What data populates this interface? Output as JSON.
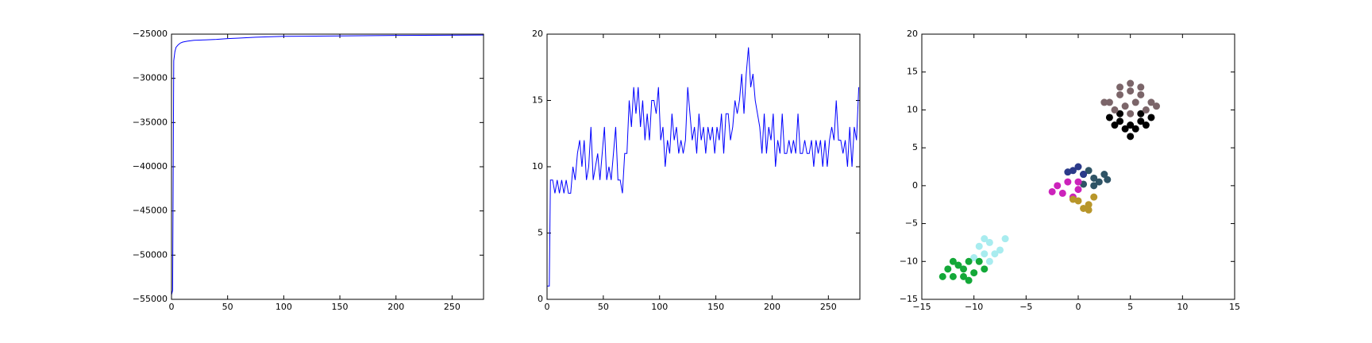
{
  "chart_data": [
    {
      "type": "line",
      "color": "#0000ff",
      "x": [
        0,
        1,
        2,
        3,
        4,
        6,
        8,
        10,
        14,
        20,
        30,
        40,
        50,
        60,
        75,
        100,
        150,
        200,
        278
      ],
      "values": [
        -54500,
        -54000,
        -28000,
        -27000,
        -26500,
        -26200,
        -26000,
        -25900,
        -25800,
        -25700,
        -25650,
        -25600,
        -25500,
        -25450,
        -25350,
        -25250,
        -25200,
        -25150,
        -25100
      ],
      "xlim": [
        0,
        278
      ],
      "xticks": [
        0,
        50,
        100,
        150,
        200,
        250
      ],
      "ylim": [
        -55000,
        -25000
      ],
      "yticks": [
        {
          "value": -55000,
          "label": "−55000"
        },
        {
          "value": -50000,
          "label": "−50000"
        },
        {
          "value": -45000,
          "label": "−45000"
        },
        {
          "value": -40000,
          "label": "−40000"
        },
        {
          "value": -35000,
          "label": "−35000"
        },
        {
          "value": -30000,
          "label": "−30000"
        },
        {
          "value": -25000,
          "label": "−25000"
        }
      ]
    },
    {
      "type": "line",
      "color": "#0000ff",
      "x": [
        0,
        2,
        3,
        5,
        7,
        9,
        11,
        13,
        15,
        17,
        19,
        21,
        23,
        25,
        27,
        29,
        31,
        33,
        35,
        37,
        39,
        41,
        43,
        45,
        47,
        49,
        51,
        53,
        55,
        57,
        59,
        61,
        63,
        65,
        67,
        69,
        71,
        73,
        75,
        77,
        79,
        81,
        83,
        85,
        87,
        89,
        91,
        93,
        95,
        97,
        99,
        101,
        103,
        105,
        107,
        109,
        111,
        113,
        115,
        117,
        119,
        121,
        123,
        125,
        127,
        129,
        131,
        133,
        135,
        137,
        139,
        141,
        143,
        145,
        147,
        149,
        151,
        153,
        155,
        157,
        159,
        161,
        163,
        165,
        167,
        169,
        171,
        173,
        175,
        177,
        179,
        181,
        183,
        185,
        187,
        189,
        191,
        193,
        195,
        197,
        199,
        201,
        203,
        205,
        207,
        209,
        211,
        213,
        215,
        217,
        219,
        221,
        223,
        225,
        227,
        229,
        231,
        233,
        235,
        237,
        239,
        241,
        243,
        245,
        247,
        249,
        251,
        253,
        255,
        257,
        259,
        261,
        263,
        265,
        267,
        269,
        271,
        273,
        275,
        277
      ],
      "values": [
        1,
        1,
        9,
        9,
        8,
        9,
        8,
        9,
        8,
        9,
        8,
        8,
        10,
        9,
        11,
        12,
        10,
        12,
        9,
        10,
        13,
        9,
        10,
        11,
        9,
        11,
        13,
        9,
        10,
        9,
        11,
        13,
        9,
        9,
        8,
        11,
        11,
        15,
        13,
        16,
        14,
        16,
        13,
        15,
        12,
        14,
        12,
        15,
        15,
        14,
        16,
        12,
        13,
        10,
        12,
        11,
        14,
        12,
        13,
        11,
        12,
        11,
        12,
        16,
        14,
        12,
        13,
        11,
        14,
        12,
        13,
        11,
        13,
        12,
        13,
        11,
        13,
        12,
        14,
        11,
        14,
        14,
        12,
        13,
        15,
        14,
        15,
        17,
        14,
        17,
        19,
        16,
        17,
        15,
        14,
        13,
        11,
        14,
        11,
        13,
        12,
        14,
        10,
        12,
        11,
        14,
        11,
        11,
        12,
        11,
        12,
        11,
        14,
        11,
        11,
        12,
        11,
        11,
        12,
        10,
        12,
        11,
        12,
        10,
        12,
        10,
        12,
        13,
        12,
        15,
        12,
        12,
        11,
        12,
        10,
        13,
        10,
        13,
        12,
        16
      ],
      "xlim": [
        0,
        278
      ],
      "xticks": [
        0,
        50,
        100,
        150,
        200,
        250
      ],
      "ylim": [
        0,
        20
      ],
      "yticks": [
        0,
        5,
        10,
        15,
        20
      ]
    },
    {
      "type": "scatter",
      "series": [
        {
          "color": "#000000",
          "x": [
            3,
            4,
            5,
            6,
            7,
            4.5,
            5.5,
            4,
            6,
            5,
            3.5,
            6.5
          ],
          "y": [
            9,
            8.5,
            8,
            8.5,
            9,
            7.5,
            7.5,
            9.5,
            9.5,
            6.5,
            8,
            8
          ]
        },
        {
          "color": "#7b6569",
          "x": [
            3,
            4,
            5,
            6,
            7,
            3.5,
            4.5,
            5.5,
            6.5,
            5,
            4,
            6,
            2.5,
            7.5,
            5
          ],
          "y": [
            11,
            12,
            12.5,
            12,
            11,
            10,
            10.5,
            11,
            10,
            13.5,
            13,
            13,
            11,
            10.5,
            9.5
          ]
        },
        {
          "color": "#a8ecef",
          "x": [
            -9.5,
            -8.5,
            -7.5,
            -9,
            -8,
            -8.5,
            -7,
            -10,
            -9
          ],
          "y": [
            -8,
            -7.5,
            -8.5,
            -9,
            -9,
            -10,
            -7,
            -9.5,
            -7
          ]
        },
        {
          "color": "#13a838",
          "x": [
            -12.5,
            -11.5,
            -10.5,
            -9.5,
            -12,
            -11,
            -10,
            -11,
            -10.5,
            -12,
            -13,
            -9
          ],
          "y": [
            -11,
            -10.5,
            -10,
            -10,
            -12,
            -12,
            -11.5,
            -11,
            -12.5,
            -10,
            -12,
            -11
          ]
        },
        {
          "color": "#2f5466",
          "x": [
            0.5,
            1.5,
            2.5,
            1,
            2,
            1.5,
            0.5,
            2.8
          ],
          "y": [
            1.5,
            1,
            1.5,
            2,
            0.5,
            0,
            0.2,
            0.8
          ]
        },
        {
          "color": "#2b3a8a",
          "x": [
            -0.5,
            0.5,
            0,
            -1
          ],
          "y": [
            2,
            1.5,
            2.5,
            1.8
          ]
        },
        {
          "color": "#cc22bb",
          "x": [
            -2,
            -1,
            0,
            -1.5,
            -0.5,
            -2.5,
            0
          ],
          "y": [
            0,
            0.5,
            -0.5,
            -1,
            -1.5,
            -0.8,
            0.5
          ]
        },
        {
          "color": "#b8962a",
          "x": [
            0,
            1,
            0.5,
            -0.5,
            1.5,
            1
          ],
          "y": [
            -2,
            -2.5,
            -3,
            -1.8,
            -1.5,
            -3.2
          ]
        }
      ],
      "xlim": [
        -15,
        15
      ],
      "xticks": [
        {
          "value": -15,
          "label": "−15"
        },
        {
          "value": -10,
          "label": "−10"
        },
        {
          "value": -5,
          "label": "−5"
        },
        0,
        5,
        10,
        15
      ],
      "ylim": [
        -15,
        20
      ],
      "yticks": [
        {
          "value": -15,
          "label": "−15"
        },
        {
          "value": -10,
          "label": "−10"
        },
        {
          "value": -5,
          "label": "−5"
        },
        0,
        5,
        10,
        15,
        20
      ]
    }
  ]
}
